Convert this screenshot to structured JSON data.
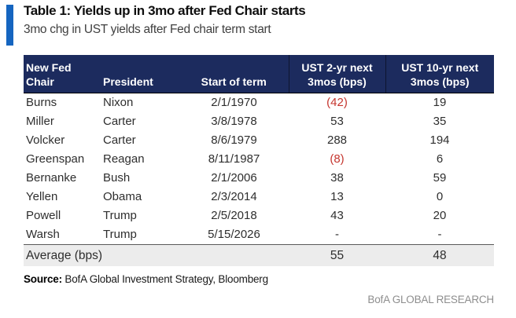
{
  "title": "Table 1: Yields up in 3mo after Fed Chair starts",
  "subtitle": "3mo chg in UST yields after Fed chair term start",
  "colors": {
    "accent_bar": "#1565c0",
    "header_bg": "#1c2b5e",
    "negative_value": "#c5352e",
    "average_row_bg": "#ececec"
  },
  "table": {
    "header": {
      "col1_line1": "New Fed",
      "col1_line2": "Chair",
      "col2": "President",
      "col3": "Start of term",
      "col4_line1": "UST 2-yr next",
      "col4_line2": "3mos (bps)",
      "col5_line1": "UST 10-yr next",
      "col5_line2": "3mos (bps)"
    },
    "rows": [
      {
        "chair": "Burns",
        "president": "Nixon",
        "start": "2/1/1970",
        "ust2": "(42)",
        "ust2_negative": true,
        "ust10": "19"
      },
      {
        "chair": "Miller",
        "president": "Carter",
        "start": "3/8/1978",
        "ust2": "53",
        "ust2_negative": false,
        "ust10": "35"
      },
      {
        "chair": "Volcker",
        "president": "Carter",
        "start": "8/6/1979",
        "ust2": "288",
        "ust2_negative": false,
        "ust10": "194"
      },
      {
        "chair": "Greenspan",
        "president": "Reagan",
        "start": "8/11/1987",
        "ust2": "(8)",
        "ust2_negative": true,
        "ust10": "6"
      },
      {
        "chair": "Bernanke",
        "president": "Bush",
        "start": "2/1/2006",
        "ust2": "38",
        "ust2_negative": false,
        "ust10": "59"
      },
      {
        "chair": "Yellen",
        "president": "Obama",
        "start": "2/3/2014",
        "ust2": "13",
        "ust2_negative": false,
        "ust10": "0"
      },
      {
        "chair": "Powell",
        "president": "Trump",
        "start": "2/5/2018",
        "ust2": "43",
        "ust2_negative": false,
        "ust10": "20"
      },
      {
        "chair": "Warsh",
        "president": "Trump",
        "start": "5/15/2026",
        "ust2": "-",
        "ust2_negative": false,
        "ust10": "-"
      }
    ],
    "average": {
      "label": "Average (bps)",
      "ust2": "55",
      "ust10": "48"
    }
  },
  "source": {
    "label": "Source:",
    "text": " BofA Global Investment Strategy, Bloomberg"
  },
  "brand": "BofA GLOBAL RESEARCH",
  "chart_data": {
    "type": "table",
    "title": "Table 1: Yields up in 3mo after Fed Chair starts",
    "subtitle": "3mo chg in UST yields after Fed chair term start",
    "columns": [
      "New Fed Chair",
      "President",
      "Start of term",
      "UST 2-yr next 3mos (bps)",
      "UST 10-yr next 3mos (bps)"
    ],
    "rows": [
      [
        "Burns",
        "Nixon",
        "2/1/1970",
        -42,
        19
      ],
      [
        "Miller",
        "Carter",
        "3/8/1978",
        53,
        35
      ],
      [
        "Volcker",
        "Carter",
        "8/6/1979",
        288,
        194
      ],
      [
        "Greenspan",
        "Reagan",
        "8/11/1987",
        -8,
        6
      ],
      [
        "Bernanke",
        "Bush",
        "2/1/2006",
        38,
        59
      ],
      [
        "Yellen",
        "Obama",
        "2/3/2014",
        13,
        0
      ],
      [
        "Powell",
        "Trump",
        "2/5/2018",
        43,
        20
      ],
      [
        "Warsh",
        "Trump",
        "5/15/2026",
        null,
        null
      ]
    ],
    "average": {
      "UST 2-yr next 3mos (bps)": 55,
      "UST 10-yr next 3mos (bps)": 48
    },
    "source": "BofA Global Investment Strategy, Bloomberg",
    "notes": "Negative values shown in red parentheses"
  }
}
